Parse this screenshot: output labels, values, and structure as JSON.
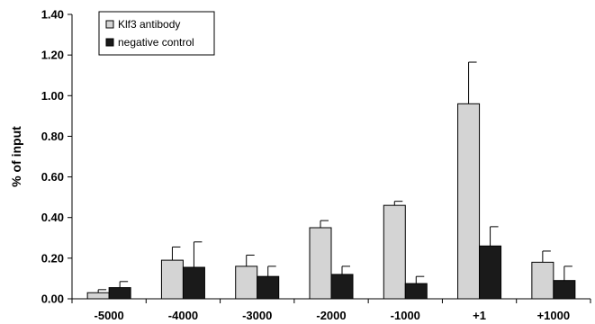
{
  "chart_data": {
    "type": "bar",
    "ylabel": "% of input",
    "xlabel": "",
    "title": "",
    "ylim": [
      0,
      1.4
    ],
    "yticks": [
      "0.00",
      "0.20",
      "0.40",
      "0.60",
      "0.80",
      "1.00",
      "1.20",
      "1.40"
    ],
    "categories": [
      "-5000",
      "-4000",
      "-3000",
      "-2000",
      "-1000",
      "+1",
      "+1000"
    ],
    "legend_position": "top-left",
    "grid": false,
    "series": [
      {
        "name": "Klf3 antibody",
        "color": "#d4d4d4",
        "values": [
          0.03,
          0.19,
          0.16,
          0.35,
          0.46,
          0.96,
          0.18
        ],
        "errors": [
          0.015,
          0.065,
          0.055,
          0.035,
          0.02,
          0.205,
          0.055
        ]
      },
      {
        "name": "negative control",
        "color": "#1a1a1a",
        "values": [
          0.055,
          0.155,
          0.11,
          0.12,
          0.075,
          0.26,
          0.09
        ],
        "errors": [
          0.03,
          0.125,
          0.05,
          0.04,
          0.035,
          0.095,
          0.07
        ]
      }
    ]
  }
}
